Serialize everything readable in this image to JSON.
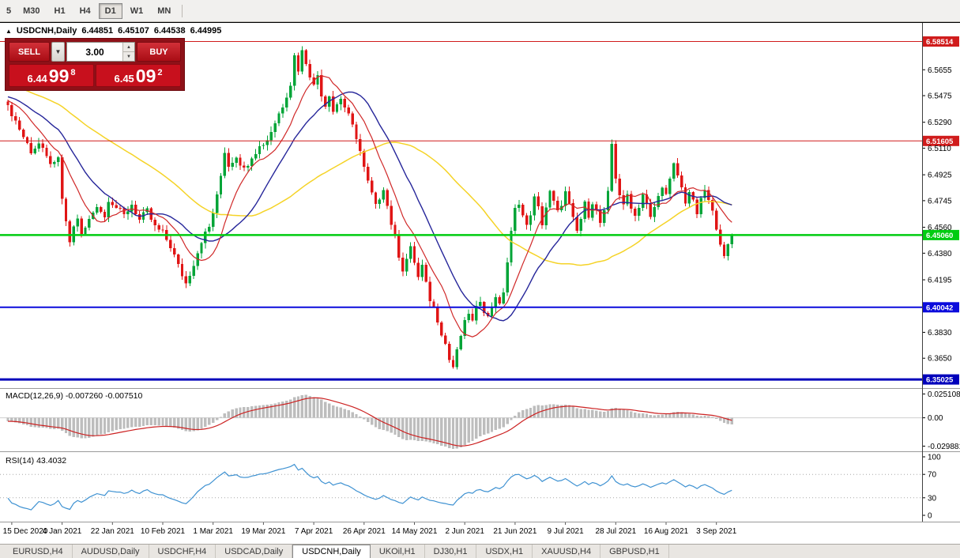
{
  "toolbar": {
    "timeframes": [
      {
        "label": "5",
        "active": false
      },
      {
        "label": "M30",
        "active": false
      },
      {
        "label": "H1",
        "active": false
      },
      {
        "label": "H4",
        "active": false
      },
      {
        "label": "D1",
        "active": true
      },
      {
        "label": "W1",
        "active": false
      },
      {
        "label": "MN",
        "active": false
      }
    ]
  },
  "chart_header": {
    "collapse_icon": "▲",
    "symbol": "USDCNH,Daily",
    "open": "6.44851",
    "high": "6.45107",
    "low": "6.44538",
    "close": "6.44995"
  },
  "one_click": {
    "sell_label": "SELL",
    "buy_label": "BUY",
    "volume": "3.00",
    "sell_big": "6.44",
    "sell_pips": "99",
    "sell_pt": "8",
    "buy_big": "6.45",
    "buy_pips": "09",
    "buy_pt": "2"
  },
  "macd_panel": {
    "label": "MACD(12,26,9) -0.007260 -0.007510",
    "ticks": [
      "0.025108",
      "0.00",
      "-0.029881"
    ]
  },
  "rsi_panel": {
    "label": "RSI(14) 43.4032",
    "ticks": [
      "100",
      "70",
      "30",
      "0"
    ]
  },
  "tabs": [
    {
      "label": "EURUSD,H4",
      "active": false
    },
    {
      "label": "AUDUSD,Daily",
      "active": false
    },
    {
      "label": "USDCHF,H4",
      "active": false
    },
    {
      "label": "USDCAD,Daily",
      "active": false
    },
    {
      "label": "USDCNH,Daily",
      "active": true
    },
    {
      "label": "UKOil,H1",
      "active": false
    },
    {
      "label": "DJ30,H1",
      "active": false
    },
    {
      "label": "USDX,H1",
      "active": false
    },
    {
      "label": "XAUUSD,H4",
      "active": false
    },
    {
      "label": "GBPUSD,H1",
      "active": false
    }
  ],
  "chart_data": {
    "type": "candlestick",
    "symbol": "USDCNH",
    "period": "Daily",
    "current_ohlc": {
      "open": 6.44851,
      "high": 6.45107,
      "low": 6.44538,
      "close": 6.44995
    },
    "bars_visible": 188,
    "price_range": {
      "min": 6.3448,
      "max": 6.5975
    },
    "colors": {
      "up": "#00a437",
      "down": "#e01515",
      "ma_fast": "#d02828",
      "ma_mid": "#26269a",
      "ma_slow": "#f5d327",
      "macd_hist": "#bdbdbd",
      "macd_signal": "#cc2222",
      "rsi": "#3f92d2"
    },
    "ma_periods": {
      "fast": 10,
      "mid": 20,
      "slow": 50
    },
    "indicators": {
      "macd": {
        "fast": 12,
        "slow": 26,
        "signal": 9,
        "current_main": -0.00726,
        "current_signal": -0.00751
      },
      "rsi": {
        "period": 14,
        "current": 43.4032,
        "levels": [
          70,
          30
        ]
      }
    },
    "levels": [
      {
        "price": 6.58514,
        "label": "6.58514",
        "color": "#d01c1c",
        "width": 1
      },
      {
        "price": 6.51605,
        "label": "6.51605",
        "color": "#d01c1c",
        "width": 1
      },
      {
        "price": 6.4506,
        "label": "6.45060",
        "color": "#00cc11",
        "width": 2.5
      },
      {
        "price": 6.40042,
        "label": "6.40042",
        "color": "#0b0bdc",
        "width": 2
      },
      {
        "price": 6.35025,
        "label": "6.35025",
        "color": "#0000bb",
        "width": 3
      }
    ],
    "y_ticks": [
      "6.5655",
      "6.5475",
      "6.5290",
      "6.5110",
      "6.4925",
      "6.4745",
      "6.4560",
      "6.4380",
      "6.4195",
      "6.3830",
      "6.3650"
    ],
    "x_labels": [
      {
        "text": "15 Dec 2020",
        "bar": 1
      },
      {
        "text": "4 Jan 2021",
        "bar": 14
      },
      {
        "text": "22 Jan 2021",
        "bar": 27
      },
      {
        "text": "10 Feb 2021",
        "bar": 40
      },
      {
        "text": "1 Mar 2021",
        "bar": 53
      },
      {
        "text": "19 Mar 2021",
        "bar": 66
      },
      {
        "text": "7 Apr 2021",
        "bar": 79
      },
      {
        "text": "26 Apr 2021",
        "bar": 92
      },
      {
        "text": "14 May 2021",
        "bar": 105
      },
      {
        "text": "2 Jun 2021",
        "bar": 118
      },
      {
        "text": "21 Jun 2021",
        "bar": 131
      },
      {
        "text": "9 Jul 2021",
        "bar": 144
      },
      {
        "text": "28 Jul 2021",
        "bar": 157
      },
      {
        "text": "16 Aug 2021",
        "bar": 170
      },
      {
        "text": "3 Sep 2021",
        "bar": 183
      }
    ],
    "close_anchors": [
      [
        0,
        6.541
      ],
      [
        2,
        6.53
      ],
      [
        4,
        6.519
      ],
      [
        6,
        6.509
      ],
      [
        8,
        6.514
      ],
      [
        10,
        6.504
      ],
      [
        12,
        6.499
      ],
      [
        13,
        6.503
      ],
      [
        14,
        6.476
      ],
      [
        15,
        6.458
      ],
      [
        16,
        6.446
      ],
      [
        17,
        6.456
      ],
      [
        18,
        6.463
      ],
      [
        19,
        6.45
      ],
      [
        21,
        6.461
      ],
      [
        23,
        6.472
      ],
      [
        25,
        6.463
      ],
      [
        26,
        6.476
      ],
      [
        28,
        6.47
      ],
      [
        30,
        6.464
      ],
      [
        32,
        6.472
      ],
      [
        34,
        6.461
      ],
      [
        36,
        6.467
      ],
      [
        38,
        6.456
      ],
      [
        40,
        6.452
      ],
      [
        42,
        6.443
      ],
      [
        44,
        6.429
      ],
      [
        46,
        6.417
      ],
      [
        48,
        6.431
      ],
      [
        50,
        6.447
      ],
      [
        52,
        6.456
      ],
      [
        54,
        6.477
      ],
      [
        55,
        6.492
      ],
      [
        56,
        6.509
      ],
      [
        57,
        6.499
      ],
      [
        59,
        6.506
      ],
      [
        61,
        6.496
      ],
      [
        63,
        6.506
      ],
      [
        65,
        6.512
      ],
      [
        67,
        6.517
      ],
      [
        69,
        6.529
      ],
      [
        71,
        6.541
      ],
      [
        73,
        6.556
      ],
      [
        74,
        6.575
      ],
      [
        75,
        6.566
      ],
      [
        76,
        6.578
      ],
      [
        77,
        6.571
      ],
      [
        79,
        6.554
      ],
      [
        80,
        6.562
      ],
      [
        81,
        6.549
      ],
      [
        82,
        6.541
      ],
      [
        83,
        6.549
      ],
      [
        84,
        6.537
      ],
      [
        86,
        6.546
      ],
      [
        88,
        6.533
      ],
      [
        90,
        6.519
      ],
      [
        91,
        6.509
      ],
      [
        92,
        6.497
      ],
      [
        93,
        6.487
      ],
      [
        94,
        6.479
      ],
      [
        95,
        6.47
      ],
      [
        96,
        6.477
      ],
      [
        97,
        6.484
      ],
      [
        98,
        6.471
      ],
      [
        99,
        6.459
      ],
      [
        100,
        6.448
      ],
      [
        101,
        6.437
      ],
      [
        102,
        6.427
      ],
      [
        103,
        6.434
      ],
      [
        104,
        6.441
      ],
      [
        105,
        6.432
      ],
      [
        106,
        6.421
      ],
      [
        107,
        6.429
      ],
      [
        108,
        6.416
      ],
      [
        109,
        6.406
      ],
      [
        110,
        6.4
      ],
      [
        111,
        6.392
      ],
      [
        112,
        6.383
      ],
      [
        113,
        6.375
      ],
      [
        114,
        6.364
      ],
      [
        115,
        6.359
      ],
      [
        116,
        6.369
      ],
      [
        117,
        6.381
      ],
      [
        118,
        6.389
      ],
      [
        119,
        6.397
      ],
      [
        120,
        6.39
      ],
      [
        121,
        6.399
      ],
      [
        122,
        6.406
      ],
      [
        123,
        6.399
      ],
      [
        124,
        6.393
      ],
      [
        125,
        6.401
      ],
      [
        126,
        6.409
      ],
      [
        127,
        6.401
      ],
      [
        128,
        6.412
      ],
      [
        129,
        6.432
      ],
      [
        130,
        6.452
      ],
      [
        131,
        6.468
      ],
      [
        132,
        6.474
      ],
      [
        133,
        6.464
      ],
      [
        134,
        6.456
      ],
      [
        135,
        6.466
      ],
      [
        136,
        6.476
      ],
      [
        137,
        6.469
      ],
      [
        138,
        6.459
      ],
      [
        139,
        6.47
      ],
      [
        140,
        6.48
      ],
      [
        141,
        6.473
      ],
      [
        142,
        6.466
      ],
      [
        143,
        6.473
      ],
      [
        144,
        6.48
      ],
      [
        145,
        6.471
      ],
      [
        146,
        6.461
      ],
      [
        147,
        6.453
      ],
      [
        148,
        6.462
      ],
      [
        149,
        6.472
      ],
      [
        150,
        6.465
      ],
      [
        151,
        6.474
      ],
      [
        152,
        6.467
      ],
      [
        153,
        6.459
      ],
      [
        154,
        6.466
      ],
      [
        155,
        6.479
      ],
      [
        156,
        6.514
      ],
      [
        157,
        6.491
      ],
      [
        158,
        6.479
      ],
      [
        159,
        6.47
      ],
      [
        160,
        6.479
      ],
      [
        161,
        6.471
      ],
      [
        162,
        6.464
      ],
      [
        163,
        6.471
      ],
      [
        164,
        6.479
      ],
      [
        165,
        6.471
      ],
      [
        166,
        6.462
      ],
      [
        167,
        6.47
      ],
      [
        168,
        6.477
      ],
      [
        169,
        6.486
      ],
      [
        170,
        6.478
      ],
      [
        171,
        6.488
      ],
      [
        172,
        6.499
      ],
      [
        173,
        6.492
      ],
      [
        174,
        6.483
      ],
      [
        175,
        6.474
      ],
      [
        176,
        6.481
      ],
      [
        177,
        6.473
      ],
      [
        178,
        6.466
      ],
      [
        179,
        6.474
      ],
      [
        180,
        6.482
      ],
      [
        181,
        6.474
      ],
      [
        182,
        6.466
      ],
      [
        183,
        6.457
      ],
      [
        184,
        6.446
      ],
      [
        185,
        6.434
      ],
      [
        186,
        6.443
      ],
      [
        187,
        6.45
      ]
    ]
  }
}
